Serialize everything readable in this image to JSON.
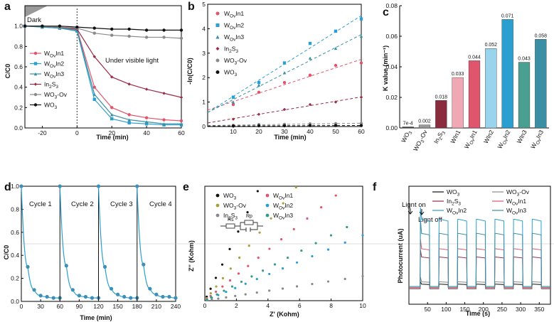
{
  "chart_data": [
    {
      "panel": "a",
      "type": "line",
      "xlabel": "Time (min)",
      "ylabel": "C/C0",
      "xlim": [
        -30,
        60
      ],
      "ylim": [
        0.0,
        1.2
      ],
      "xticks": [
        -20,
        0,
        20,
        40,
        60
      ],
      "yticks": [
        0.0,
        0.2,
        0.4,
        0.6,
        0.8,
        1.0
      ],
      "x": [
        -30,
        -20,
        -10,
        0,
        10,
        20,
        30,
        40,
        50,
        60
      ],
      "annotations": [
        "Dark",
        "Under visible light"
      ],
      "series": [
        {
          "name": "WOvIn1",
          "color": "#e0556e",
          "values": [
            1.0,
            1.0,
            0.99,
            0.97,
            0.4,
            0.2,
            0.13,
            0.1,
            0.08,
            0.07
          ]
        },
        {
          "name": "WOvIn2",
          "color": "#2b9fd0",
          "values": [
            1.0,
            0.99,
            0.98,
            0.95,
            0.28,
            0.09,
            0.05,
            0.04,
            0.03,
            0.03
          ]
        },
        {
          "name": "WOvIn3",
          "color": "#3a8fa4",
          "values": [
            1.0,
            0.99,
            0.98,
            0.96,
            0.33,
            0.13,
            0.08,
            0.06,
            0.04,
            0.04
          ]
        },
        {
          "name": "In2S3",
          "color": "#9b2a45",
          "values": [
            1.0,
            1.0,
            0.99,
            0.97,
            0.7,
            0.5,
            0.43,
            0.38,
            0.34,
            0.3
          ]
        },
        {
          "name": "WO3-Ov",
          "color": "#8a8a8a",
          "values": [
            1.0,
            1.0,
            0.99,
            0.98,
            0.93,
            0.91,
            0.9,
            0.89,
            0.89,
            0.88
          ]
        },
        {
          "name": "WO3",
          "color": "#111111",
          "values": [
            1.0,
            1.0,
            1.0,
            0.99,
            0.98,
            0.97,
            0.97,
            0.96,
            0.96,
            0.96
          ]
        }
      ]
    },
    {
      "panel": "b",
      "type": "scatter",
      "xlabel": "Time (min)",
      "ylabel": "-ln(C/C0)",
      "xlim": [
        0,
        60
      ],
      "ylim": [
        0,
        5
      ],
      "xticks": [
        10,
        20,
        30,
        40,
        50,
        60
      ],
      "yticks": [
        0,
        1,
        2,
        3,
        4,
        5
      ],
      "x": [
        10,
        20,
        30,
        40,
        50,
        60
      ],
      "series": [
        {
          "name": "WOvIn1",
          "color": "#e0556e",
          "values": [
            0.9,
            1.4,
            1.8,
            2.1,
            2.5,
            2.6
          ]
        },
        {
          "name": "WOvIn2",
          "color": "#2b9fd0",
          "values": [
            1.2,
            1.8,
            2.6,
            3.4,
            3.9,
            4.4
          ]
        },
        {
          "name": "WOvIn3",
          "color": "#3a8fa4",
          "values": [
            1.0,
            1.7,
            2.2,
            2.8,
            3.2,
            3.7
          ]
        },
        {
          "name": "In2S3",
          "color": "#9b2a45",
          "values": [
            0.3,
            0.5,
            0.7,
            0.9,
            1.0,
            1.2
          ]
        },
        {
          "name": "WO3-Ov",
          "color": "#8a8a8a",
          "values": [
            0.05,
            0.08,
            0.09,
            0.11,
            0.12,
            0.13
          ]
        },
        {
          "name": "WO3",
          "color": "#111111",
          "values": [
            0.02,
            0.03,
            0.03,
            0.04,
            0.04,
            0.04
          ]
        }
      ]
    },
    {
      "panel": "c",
      "type": "bar",
      "ylabel": "K value (min⁻¹)",
      "ylim": [
        0.0,
        0.08
      ],
      "yticks": [
        0.0,
        0.02,
        0.04,
        0.06,
        0.08
      ],
      "categories": [
        "WO3",
        "WO3-Ov",
        "In2S3",
        "WIn1",
        "WOvIn1",
        "WIn2",
        "WOvIn2",
        "WIn3",
        "WOvIn3"
      ],
      "values": [
        0.0007,
        0.002,
        0.018,
        0.033,
        0.044,
        0.052,
        0.071,
        0.043,
        0.058
      ],
      "data_labels": [
        "7e-4",
        "0.002",
        "0.018",
        "0.033",
        "0.044",
        "0.052",
        "0.071",
        "0.043",
        "0.058"
      ],
      "colors": [
        "#444444",
        "#999999",
        "#8b2b3e",
        "#f0a8b4",
        "#e0556e",
        "#9ad4ec",
        "#2b9fd0",
        "#4aa090",
        "#3a8fa4"
      ]
    },
    {
      "panel": "d",
      "type": "line",
      "xlabel": "Time (min)",
      "ylabel": "C/C0",
      "xlim": [
        0,
        240
      ],
      "ylim": [
        0.0,
        1.0
      ],
      "xticks": [
        0,
        30,
        60,
        90,
        120,
        150,
        180,
        210,
        240
      ],
      "yticks": [
        0.0,
        0.2,
        0.4,
        0.6,
        0.8,
        1.0
      ],
      "annotations": [
        "Cycle 1",
        "Cycle 2",
        "Cycle 3",
        "Cycle 4"
      ],
      "cycle_times": [
        0,
        10,
        20,
        30,
        40,
        50,
        60
      ],
      "series": [
        {
          "name": "Cycle 1",
          "color": "#2b9fd0",
          "values": [
            1.0,
            0.3,
            0.1,
            0.05,
            0.04,
            0.03,
            0.03
          ]
        },
        {
          "name": "Cycle 2",
          "color": "#2b9fd0",
          "values": [
            1.0,
            0.31,
            0.1,
            0.05,
            0.04,
            0.03,
            0.03
          ]
        },
        {
          "name": "Cycle 3",
          "color": "#2b9fd0",
          "values": [
            1.0,
            0.3,
            0.11,
            0.06,
            0.04,
            0.03,
            0.03
          ]
        },
        {
          "name": "Cycle 4",
          "color": "#2b9fd0",
          "values": [
            1.0,
            0.32,
            0.11,
            0.06,
            0.04,
            0.04,
            0.03
          ]
        }
      ]
    },
    {
      "panel": "e",
      "type": "scatter",
      "xlabel": "Z' (Kohm)",
      "ylabel": "Z'' (Kohm)",
      "xlim": [
        0,
        10
      ],
      "ylim": [
        0,
        14
      ],
      "xticks": [
        0,
        2,
        4,
        6,
        8,
        10
      ],
      "circuit_labels": [
        "Rs",
        "Rp"
      ],
      "series": [
        {
          "name": "WO3",
          "color": "#111111",
          "slope": 4.0,
          "xmax": 8.2
        },
        {
          "name": "WO3-Ov",
          "color": "#a8a03a",
          "slope": 2.4,
          "xmax": 8.5
        },
        {
          "name": "In2S3",
          "color": "#888888",
          "slope": 0.3,
          "xmax": 10.0
        },
        {
          "name": "WOvIn1",
          "color": "#e0556e",
          "slope": 1.55,
          "xmax": 8.3
        },
        {
          "name": "WOvIn2",
          "color": "#2b9fd0",
          "slope": 0.8,
          "xmax": 10.0
        },
        {
          "name": "WOvIn3",
          "color": "#3a9a8a",
          "slope": 1.0,
          "xmax": 9.0
        }
      ]
    },
    {
      "panel": "f",
      "type": "line",
      "xlabel": "Time (s)",
      "ylabel": "Photocurrent (uA)",
      "xlim": [
        0,
        380
      ],
      "ylim": [
        0,
        1.0
      ],
      "xticks": [
        50,
        100,
        150,
        200,
        250,
        300,
        350
      ],
      "annotations": [
        "Lignt on",
        "Lignt off"
      ],
      "on_start": [
        30,
        80,
        130,
        180,
        230,
        280,
        330
      ],
      "on_duration": 25,
      "series": [
        {
          "name": "WO3",
          "color": "#111111",
          "dark": 0.13,
          "on": 0.17
        },
        {
          "name": "WO3-Ov",
          "color": "#8a8a8a",
          "dark": 0.13,
          "on": 0.19
        },
        {
          "name": "In2S3",
          "color": "#9b2a45",
          "dark": 0.14,
          "on": 0.4
        },
        {
          "name": "WOvIn1",
          "color": "#e0556e",
          "dark": 0.14,
          "on": 0.47
        },
        {
          "name": "WOvIn2",
          "color": "#2b9fd0",
          "dark": 0.15,
          "on": 0.72
        },
        {
          "name": "WOvIn3",
          "color": "#3a8fa4",
          "dark": 0.15,
          "on": 0.6
        }
      ]
    }
  ],
  "panels": [
    {
      "label": "a"
    },
    {
      "label": "b"
    },
    {
      "label": "c"
    },
    {
      "label": "d"
    },
    {
      "label": "e"
    },
    {
      "label": "f"
    }
  ],
  "legends": {
    "a": [
      "WOvIn1",
      "WOvIn2",
      "WOvIn3",
      "In2S3",
      "WO3-Ov",
      "WO3"
    ],
    "b": [
      "WOvIn1",
      "WOvIn2",
      "WOvIn3",
      "In2S3",
      "WO3-Ov",
      "WO3"
    ],
    "e": [
      "WO3",
      "WO3-Ov",
      "In2S3",
      "WOvIn1",
      "WOvIn2",
      "WOvIn3"
    ],
    "f": [
      "WO3",
      "WO3-Ov",
      "In2S3",
      "WOvIn1",
      "WOvIn2",
      "WOvIn3"
    ]
  }
}
